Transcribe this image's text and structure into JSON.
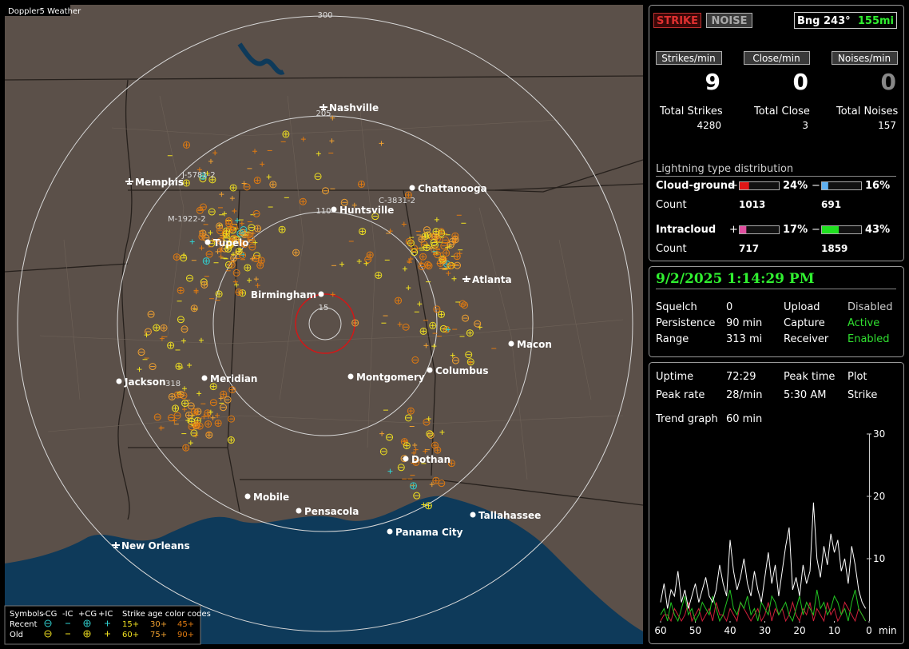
{
  "window_title": "Doppler5 Weather",
  "map": {
    "ring_labels": [
      300,
      205,
      110,
      15
    ],
    "cities": [
      "Nashville",
      "Memphis",
      "Chattanooga",
      "Huntsville",
      "Tupelo",
      "Atlanta",
      "Birmingham",
      "Macon",
      "Jackson",
      "Meridian",
      "Montgomery",
      "Columbus",
      "Dothan",
      "Mobile",
      "Pensacola",
      "Panama City",
      "Tallahassee",
      "New Orleans"
    ],
    "storm_labels": [
      "J-5781-2",
      "M-1922-2",
      "C-3831-2",
      "318"
    ],
    "legend": {
      "symbols_label": "Symbols",
      "symbol_types": [
        "-CG",
        "-IC",
        "+CG",
        "+IC"
      ],
      "age_title": "Strike age color codes",
      "rows": [
        {
          "label": "Recent",
          "ages": [
            "15+",
            "30+",
            "45+"
          ]
        },
        {
          "label": "Old",
          "ages": [
            "60+",
            "75+",
            "90+"
          ]
        }
      ]
    }
  },
  "counters": {
    "mode_buttons": [
      "STRIKE",
      "NOISE"
    ],
    "bearing": "Bng 243°",
    "distance": "155mi",
    "rates": [
      {
        "label": "Strikes/min",
        "value": 9
      },
      {
        "label": "Close/min",
        "value": 0
      },
      {
        "label": "Noises/min",
        "value": 0
      }
    ],
    "totals": [
      {
        "label": "Total Strikes",
        "value": 4280
      },
      {
        "label": "Total Close",
        "value": 3
      },
      {
        "label": "Total Noises",
        "value": 157
      }
    ],
    "distribution": {
      "title": "Lightning type distribution",
      "plus": "+",
      "minus": "−",
      "count_label": "Count",
      "types": [
        {
          "name": "Cloud-ground",
          "positive": {
            "value": 24,
            "label": "24%"
          },
          "negative": {
            "value": 16,
            "label": "16%"
          },
          "positive_count": 1013,
          "negative_count": 691
        },
        {
          "name": "Intracloud",
          "positive": {
            "value": 17,
            "label": "17%"
          },
          "negative": {
            "value": 43,
            "label": "43%"
          },
          "positive_count": 717,
          "negative_count": 1859
        }
      ]
    }
  },
  "status": {
    "timestamp": "9/2/2025 1:14:29 PM",
    "rows": [
      [
        "Squelch",
        0,
        "Upload",
        "Disabled"
      ],
      [
        "Persistence",
        "90 min",
        "Capture",
        "Active"
      ],
      [
        "Range",
        "313 mi",
        "Receiver",
        "Enabled"
      ]
    ]
  },
  "stats": {
    "rows": [
      [
        "Uptime",
        "72:29",
        "Peak time",
        "Plot"
      ],
      [
        "Peak rate",
        "28/min",
        "5:30 AM",
        "Strike"
      ]
    ],
    "trend_label": "Trend graph",
    "trend_period": "60 min"
  },
  "chart_data": {
    "type": "line",
    "x": [
      60,
      59,
      58,
      57,
      56,
      55,
      54,
      53,
      52,
      51,
      50,
      49,
      48,
      47,
      46,
      45,
      44,
      43,
      42,
      41,
      40,
      39,
      38,
      37,
      36,
      35,
      34,
      33,
      32,
      31,
      30,
      29,
      28,
      27,
      26,
      25,
      24,
      23,
      22,
      21,
      20,
      19,
      18,
      17,
      16,
      15,
      14,
      13,
      12,
      11,
      10,
      9,
      8,
      7,
      6,
      5,
      4,
      3,
      2,
      1
    ],
    "series": [
      {
        "color": "#ffffff",
        "values": [
          3,
          6,
          2,
          5,
          4,
          8,
          3,
          5,
          2,
          4,
          6,
          3,
          5,
          7,
          4,
          3,
          5,
          9,
          6,
          4,
          13,
          8,
          5,
          7,
          10,
          6,
          4,
          8,
          5,
          3,
          7,
          11,
          6,
          9,
          4,
          8,
          12,
          15,
          5,
          7,
          4,
          9,
          6,
          8,
          19,
          10,
          7,
          12,
          9,
          14,
          11,
          13,
          8,
          10,
          6,
          12,
          9,
          5,
          3,
          2
        ]
      },
      {
        "color": "#22c422",
        "values": [
          1,
          2,
          0,
          3,
          1,
          0,
          2,
          4,
          1,
          2,
          0,
          1,
          3,
          2,
          1,
          4,
          2,
          0,
          1,
          3,
          5,
          2,
          1,
          3,
          2,
          4,
          1,
          2,
          0,
          3,
          2,
          1,
          4,
          3,
          1,
          2,
          3,
          1,
          0,
          2,
          4,
          1,
          3,
          2,
          1,
          5,
          2,
          3,
          1,
          2,
          4,
          3,
          1,
          2,
          0,
          3,
          5,
          2,
          1,
          0
        ]
      },
      {
        "color": "#d0203a",
        "values": [
          0,
          1,
          1,
          0,
          2,
          1,
          0,
          1,
          3,
          0,
          1,
          2,
          0,
          1,
          2,
          0,
          3,
          1,
          1,
          0,
          2,
          1,
          0,
          3,
          2,
          1,
          0,
          1,
          2,
          0,
          1,
          3,
          0,
          2,
          1,
          2,
          0,
          1,
          3,
          1,
          0,
          2,
          1,
          3,
          0,
          2,
          1,
          0,
          3,
          1,
          2,
          0,
          1,
          3,
          2,
          1,
          0,
          2,
          1,
          0
        ]
      }
    ],
    "xlim": [
      60,
      0
    ],
    "xticks": [
      60,
      50,
      40,
      30,
      20,
      10,
      0
    ],
    "x_label": "min",
    "ylim": [
      0,
      30
    ],
    "yticks": [
      10,
      20,
      30
    ]
  }
}
